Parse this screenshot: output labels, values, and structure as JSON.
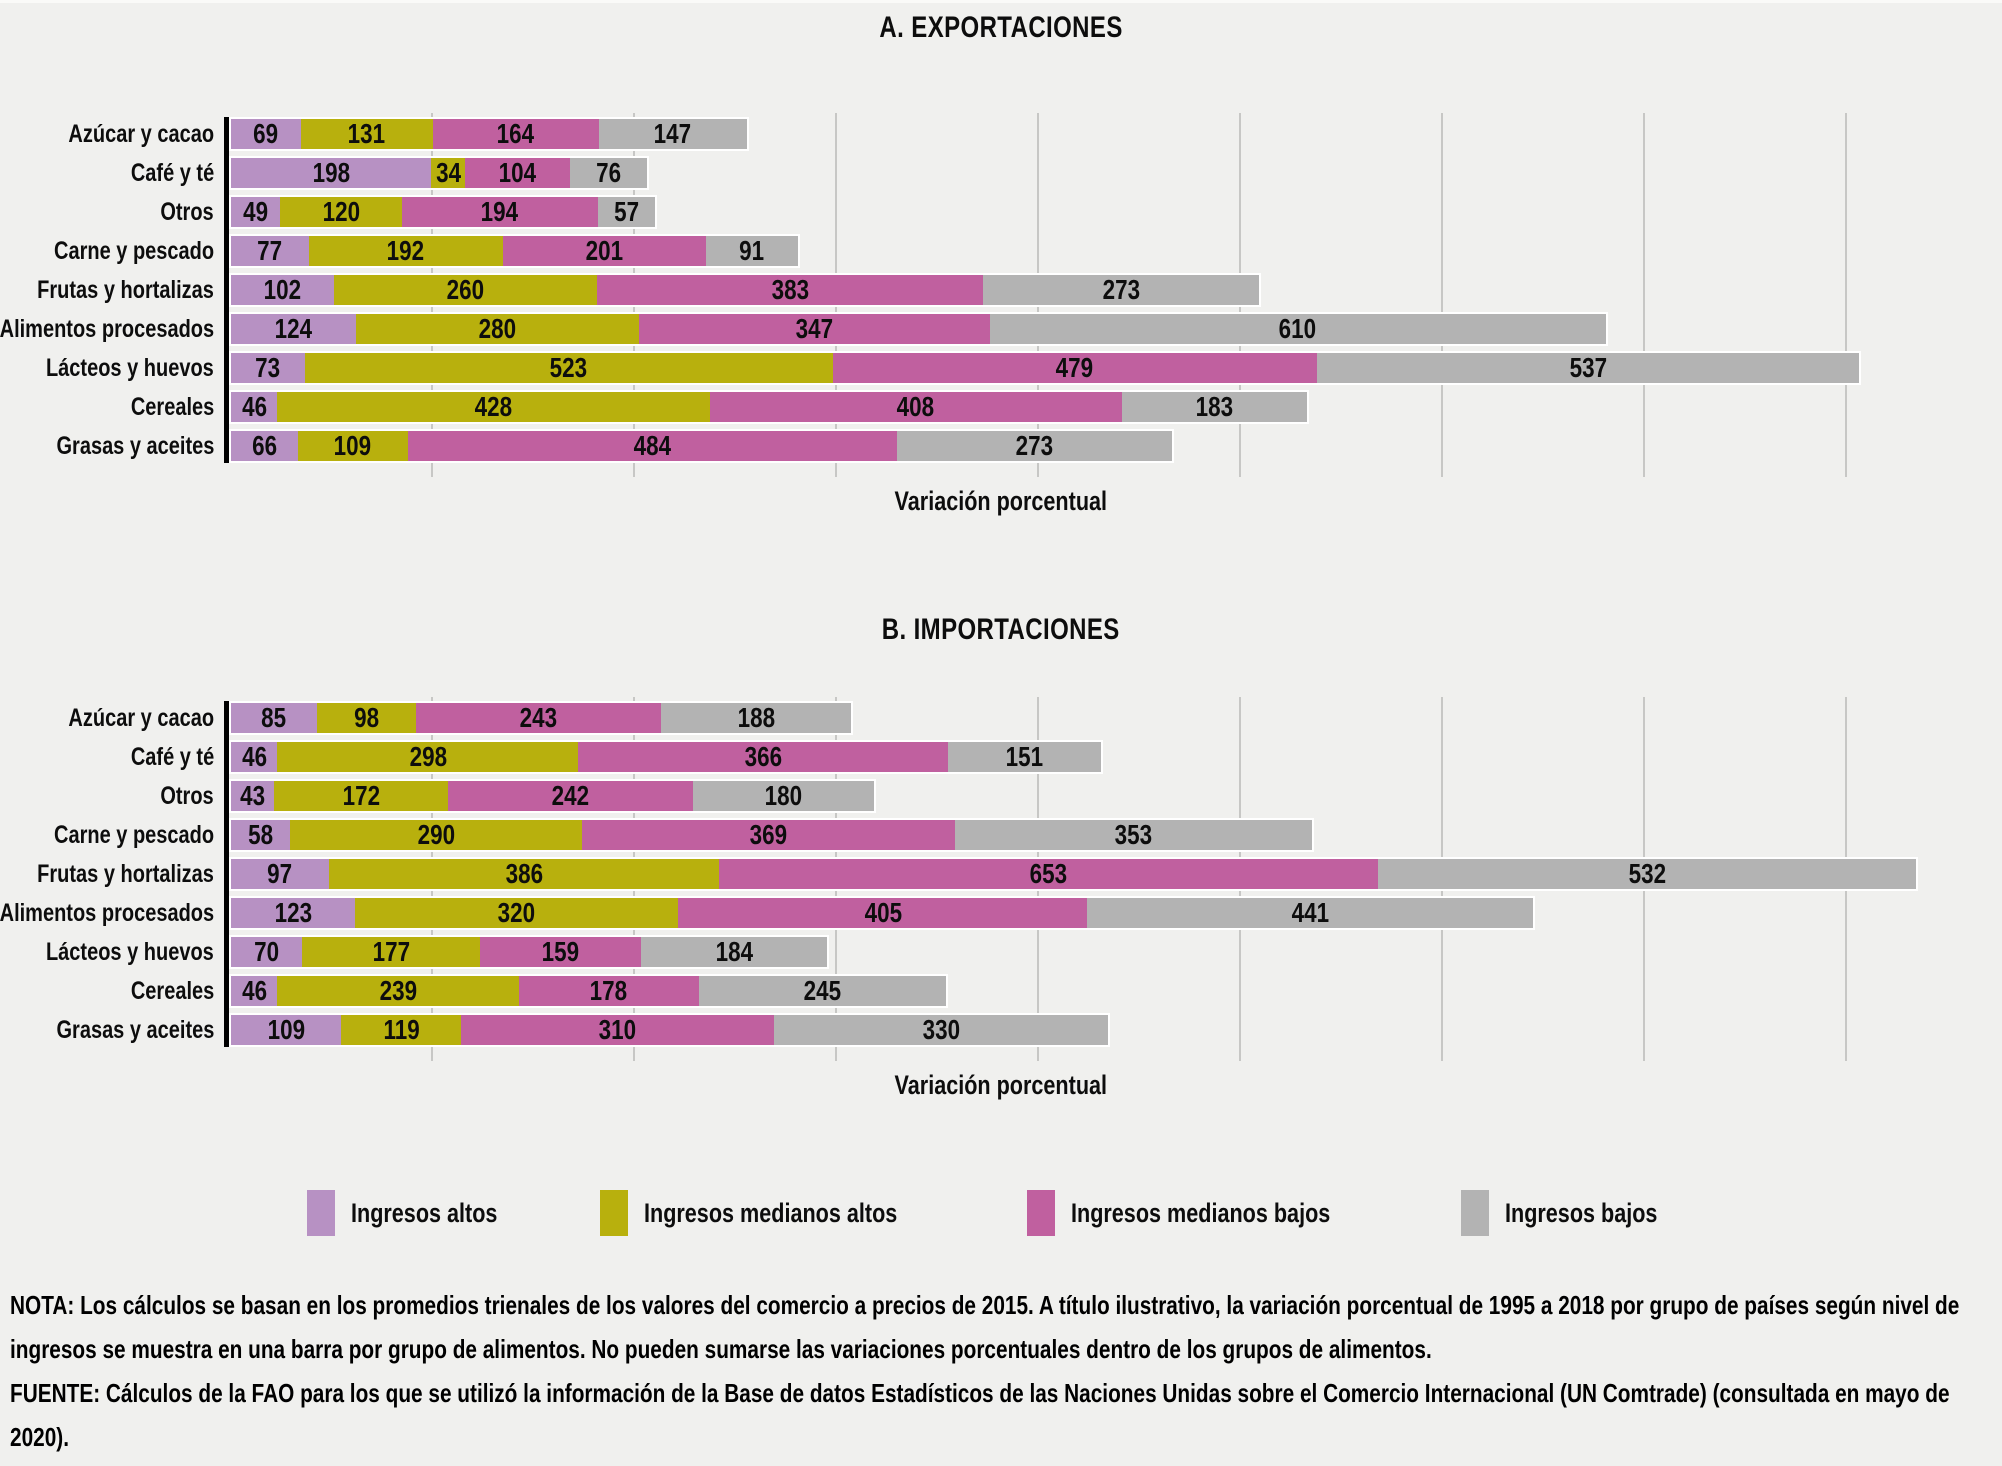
{
  "figure_note": "NOTA: Los cálculos se basan en los promedios trienales de los valores del comercio a precios de 2015. A título ilustrativo, la variación porcentual de 1995 a 2018 por grupo de países según nivel de ingresos se muestra en una barra por grupo de alimentos. No pueden sumarse las variaciones porcentuales dentro de los grupos de alimentos.",
  "figure_source": "FUENTE: Cálculos de la FAO para los que se utilizó la información de la Base de datos Estadísticos de las Naciones Unidas sobre el Comercio Internacional (UN Comtrade) (consultada en mayo de 2020).",
  "colors": {
    "background": "#f0f0ee",
    "axis": "#000000",
    "gridline": "#c7c7c5",
    "bar_outline": "#ffffff",
    "ingresos_altos": "#b791c3",
    "ingresos_medianos_altos": "#b8b00d",
    "ingresos_medianos_bajos": "#c0609f",
    "ingresos_bajos": "#b3b3b3"
  },
  "legend": [
    {
      "label": "Ingresos altos",
      "color": "#b791c3"
    },
    {
      "label": "Ingresos medianos altos",
      "color": "#b8b00d"
    },
    {
      "label": "Ingresos medianos bajos",
      "color": "#c0609f"
    },
    {
      "label": "Ingresos bajos",
      "color": "#b3b3b3"
    }
  ],
  "chart_data": [
    {
      "type": "bar",
      "orientation": "horizontal",
      "stacked": true,
      "title": "A. EXPORTACIONES",
      "xlabel": "Variación porcentual",
      "xlim": [
        0,
        1720
      ],
      "grid_interval": 200,
      "grid_max": 1600,
      "legend_position": "bottom-shared",
      "categories": [
        "Azúcar y cacao",
        "Café y té",
        "Otros",
        "Carne y pescado",
        "Frutas y hortalizas",
        "Alimentos procesados",
        "Lácteos y huevos",
        "Cereales",
        "Grasas y aceites"
      ],
      "series": [
        {
          "name": "Ingresos altos",
          "color": "#b791c3",
          "values": [
            69,
            198,
            49,
            77,
            102,
            124,
            73,
            46,
            66
          ]
        },
        {
          "name": "Ingresos medianos altos",
          "color": "#b8b00d",
          "values": [
            131,
            34,
            120,
            192,
            260,
            280,
            523,
            428,
            109
          ]
        },
        {
          "name": "Ingresos medianos bajos",
          "color": "#c0609f",
          "values": [
            164,
            104,
            194,
            201,
            383,
            347,
            479,
            408,
            484
          ]
        },
        {
          "name": "Ingresos bajos",
          "color": "#b3b3b3",
          "values": [
            147,
            76,
            57,
            91,
            273,
            610,
            537,
            183,
            273
          ]
        }
      ]
    },
    {
      "type": "bar",
      "orientation": "horizontal",
      "stacked": true,
      "title": "B. IMPORTACIONES",
      "xlabel": "Variación porcentual",
      "xlim": [
        0,
        1720
      ],
      "grid_interval": 200,
      "grid_max": 1600,
      "legend_position": "bottom-shared",
      "categories": [
        "Azúcar y cacao",
        "Café y té",
        "Otros",
        "Carne y pescado",
        "Frutas y hortalizas",
        "Alimentos procesados",
        "Lácteos y huevos",
        "Cereales",
        "Grasas y aceites"
      ],
      "series": [
        {
          "name": "Ingresos altos",
          "color": "#b791c3",
          "values": [
            85,
            46,
            43,
            58,
            97,
            123,
            70,
            46,
            109
          ]
        },
        {
          "name": "Ingresos medianos altos",
          "color": "#b8b00d",
          "values": [
            98,
            298,
            172,
            290,
            386,
            320,
            177,
            239,
            119
          ]
        },
        {
          "name": "Ingresos medianos bajos",
          "color": "#c0609f",
          "values": [
            243,
            366,
            242,
            369,
            653,
            405,
            159,
            178,
            310
          ]
        },
        {
          "name": "Ingresos bajos",
          "color": "#b3b3b3",
          "values": [
            188,
            151,
            180,
            353,
            532,
            441,
            184,
            245,
            330
          ]
        }
      ]
    }
  ]
}
